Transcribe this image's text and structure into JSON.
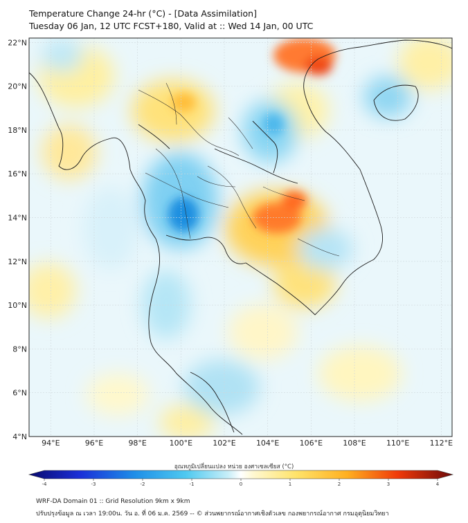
{
  "header": {
    "title": "Temperature Change 24-hr (°C) - [Data Assimilation]",
    "subtitle": "Tuesday 06 Jan, 12 UTC FCST+180, Valid at :: Wed 14 Jan, 00 UTC"
  },
  "map": {
    "lat_ticks": [
      {
        "value": 22,
        "label": "22°N"
      },
      {
        "value": 20,
        "label": "20°N"
      },
      {
        "value": 18,
        "label": "18°N"
      },
      {
        "value": 16,
        "label": "16°N"
      },
      {
        "value": 14,
        "label": "14°N"
      },
      {
        "value": 12,
        "label": "12°N"
      },
      {
        "value": 10,
        "label": "10°N"
      },
      {
        "value": 8,
        "label": "8°N"
      },
      {
        "value": 6,
        "label": "6°N"
      },
      {
        "value": 4,
        "label": "4°N"
      }
    ],
    "lon_ticks": [
      {
        "value": 94,
        "label": "94°E"
      },
      {
        "value": 96,
        "label": "96°E"
      },
      {
        "value": 98,
        "label": "98°E"
      },
      {
        "value": 100,
        "label": "100°E"
      },
      {
        "value": 102,
        "label": "102°E"
      },
      {
        "value": 104,
        "label": "104°E"
      },
      {
        "value": 106,
        "label": "106°E"
      },
      {
        "value": 108,
        "label": "108°E"
      },
      {
        "value": 110,
        "label": "110°E"
      },
      {
        "value": 112,
        "label": "112°E"
      }
    ],
    "lon_range": [
      93,
      112.5
    ],
    "lat_range": [
      4,
      22.2
    ]
  },
  "colorbar": {
    "title": "อุณหภูมิเปลี่ยนแปลง หน่วย องศาเซลเซียส (°C)",
    "range": [
      -4,
      4
    ],
    "labels": [
      "-4",
      "-3",
      "-2",
      "-1",
      "0",
      "1",
      "2",
      "3",
      "4"
    ]
  },
  "footer": {
    "line1": "WRF-DA Domain 01 :: Grid Resolution 9km x 9km",
    "line2": "ปรับปรุงข้อมูล ณ เวลา 19:00น. วัน อ. ที่ 06 ม.ค. 2569 -- © ส่วนพยากรณ์อากาศเชิงตัวเลข กองพยากรณ์อากาศ กรมอุตุนิยมวิทยา"
  },
  "colors": {
    "cold": "#1e9be0",
    "cool": "#8fd6f2",
    "neutral": "#eef8fb",
    "warm": "#ffe680",
    "hot": "#ff5a1a"
  }
}
